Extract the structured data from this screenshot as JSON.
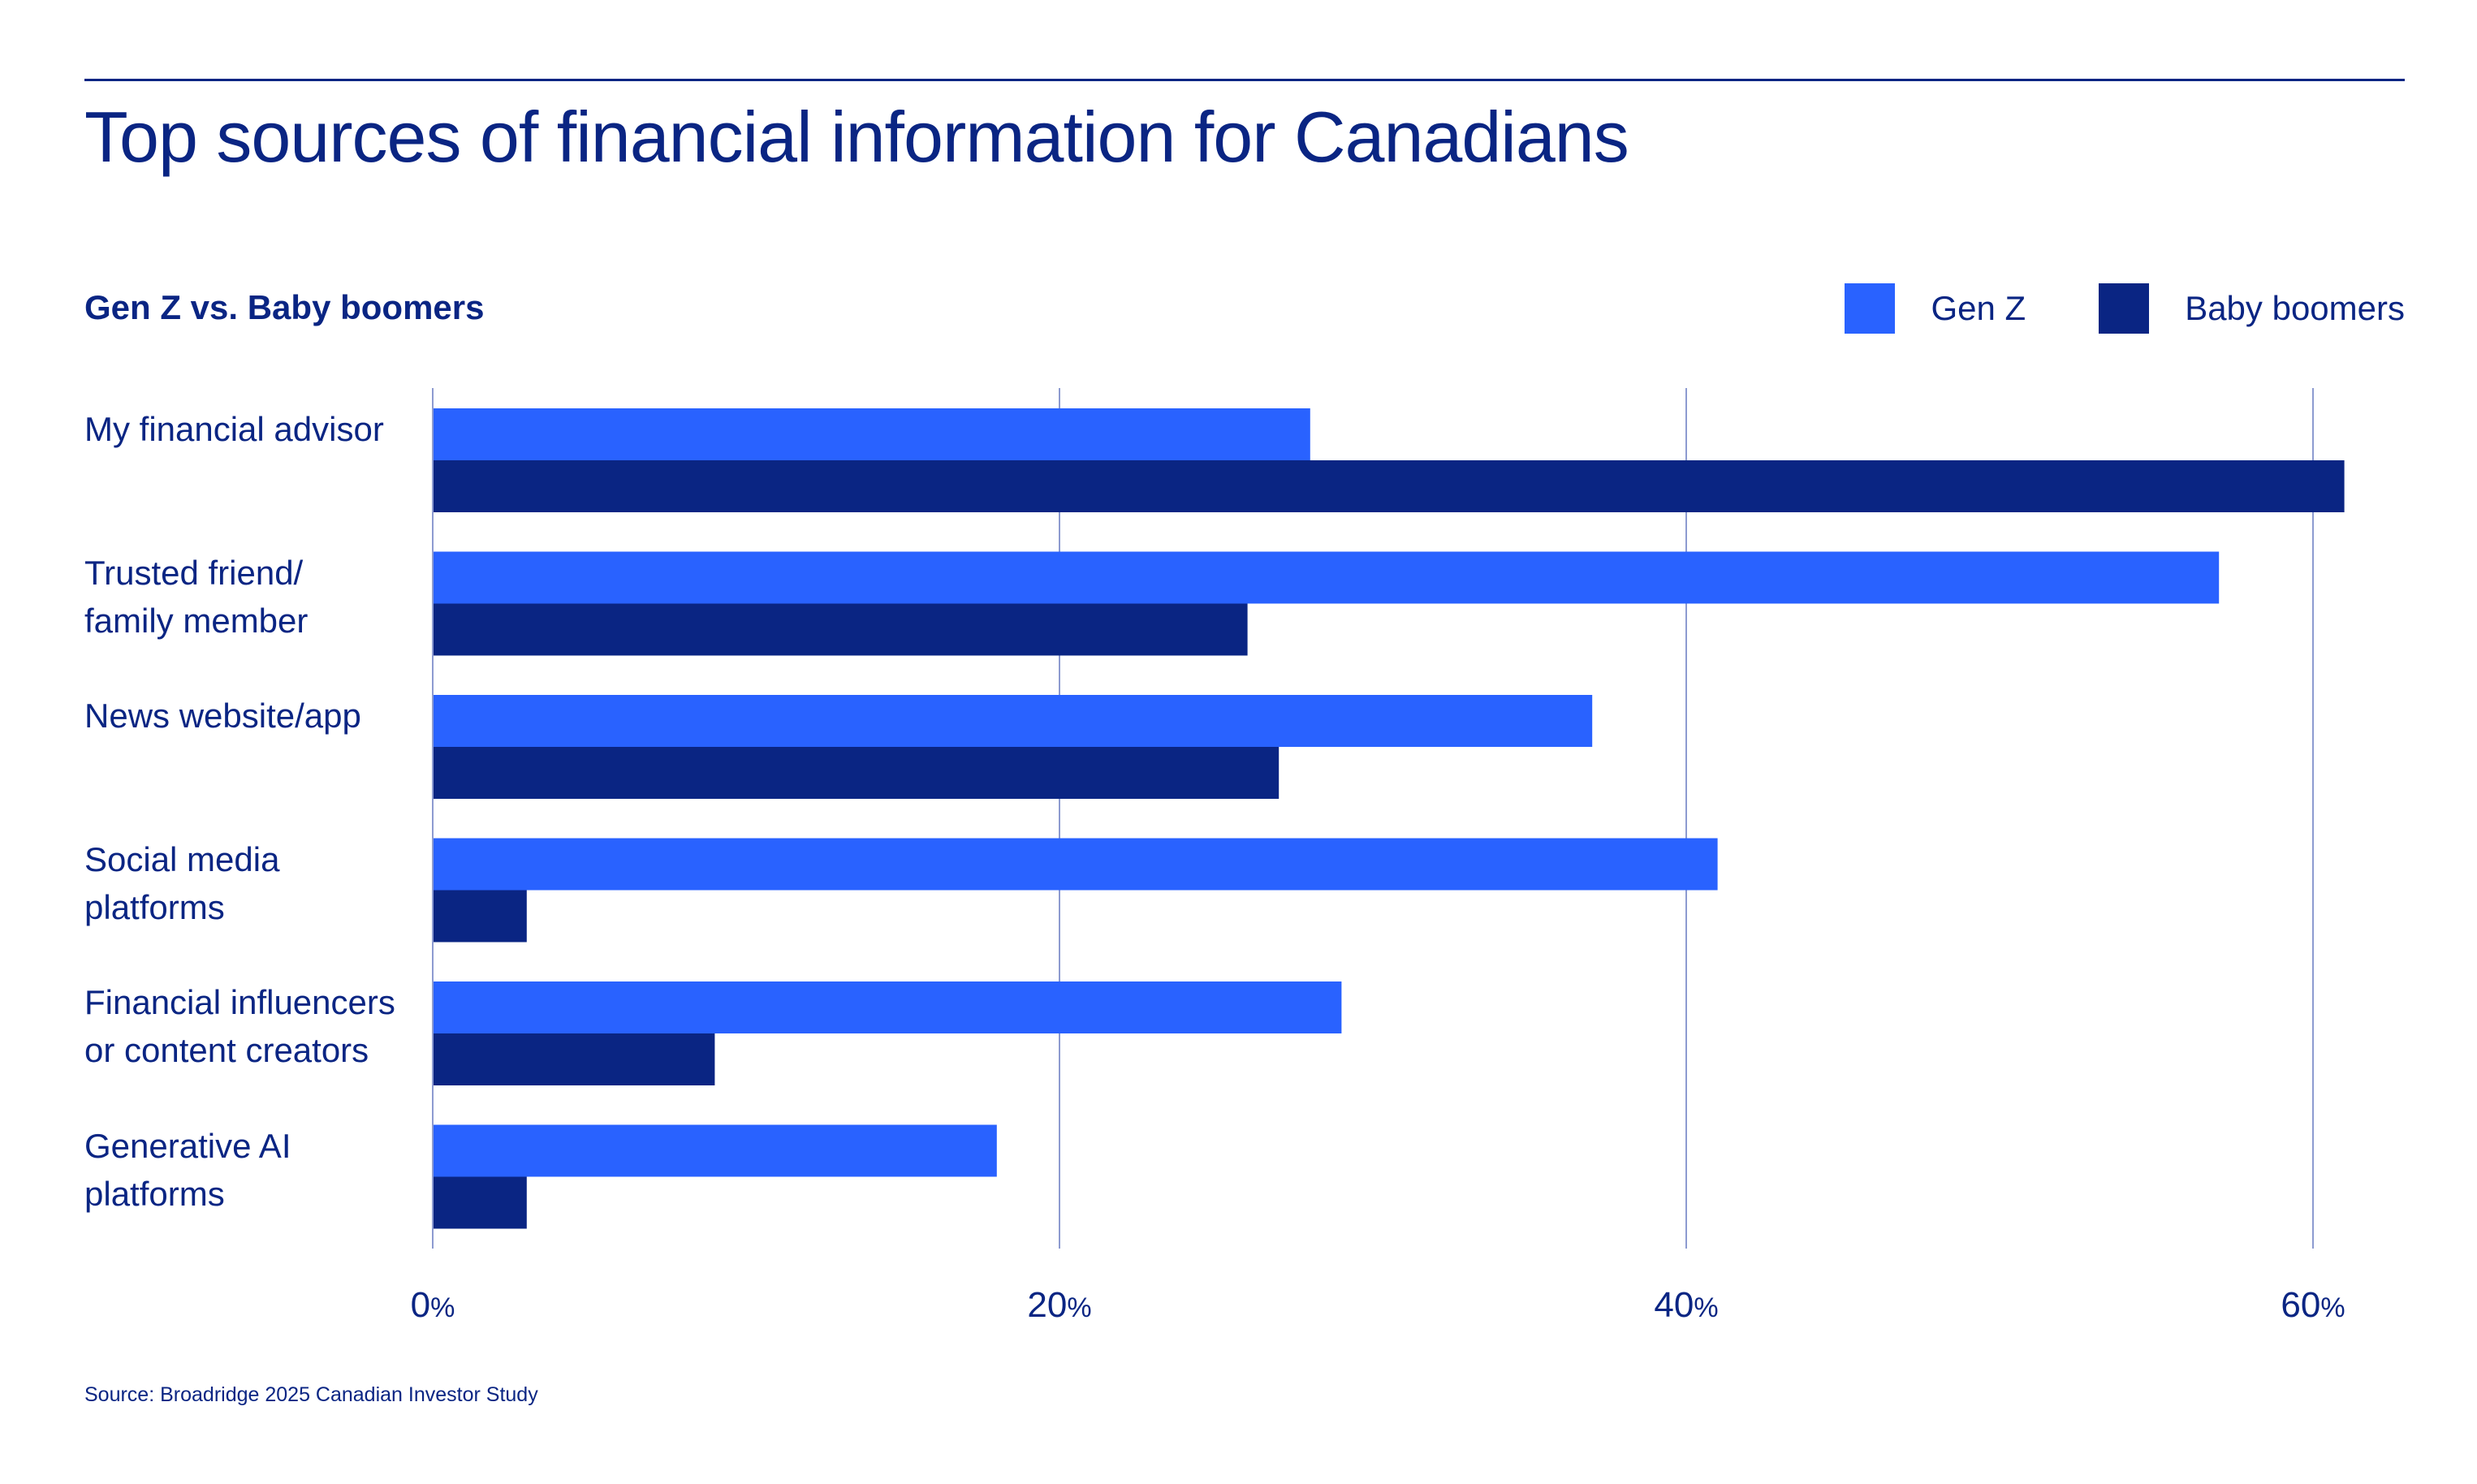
{
  "title": "Top sources of financial information for Canadians",
  "subtitle": "Gen Z vs. Baby boomers",
  "source": "Source: Broadridge 2025 Canadian Investor Study",
  "colors": {
    "gen_z": "#2962ff",
    "baby_boomers": "#0a2583",
    "text": "#0a2583",
    "grid": "#8d9bd0"
  },
  "legend": [
    {
      "label": "Gen Z",
      "color": "#2962ff"
    },
    {
      "label": "Baby boomers",
      "color": "#0a2583"
    }
  ],
  "chart_data": {
    "type": "bar",
    "orientation": "horizontal",
    "title": "Top sources of financial information for Canadians",
    "subtitle": "Gen Z vs. Baby boomers",
    "categories": [
      [
        "My financial advisor"
      ],
      [
        "Trusted friend/",
        "family member"
      ],
      [
        "News website/app"
      ],
      [
        "Social media",
        "platforms"
      ],
      [
        "Financial influencers",
        "or content creators"
      ],
      [
        "Generative AI",
        "platforms"
      ]
    ],
    "series": [
      {
        "name": "Gen Z",
        "color": "#2962ff",
        "values": [
          28,
          57,
          37,
          41,
          29,
          18
        ]
      },
      {
        "name": "Baby boomers",
        "color": "#0a2583",
        "values": [
          61,
          26,
          27,
          3,
          9,
          3
        ]
      }
    ],
    "xlim": [
      0,
      64
    ],
    "xticks": [
      0,
      20,
      40,
      60
    ],
    "tick_suffix": "%",
    "grid": true,
    "legend_position": "top-right",
    "source": "Source: Broadridge 2025 Canadian Investor Study"
  }
}
